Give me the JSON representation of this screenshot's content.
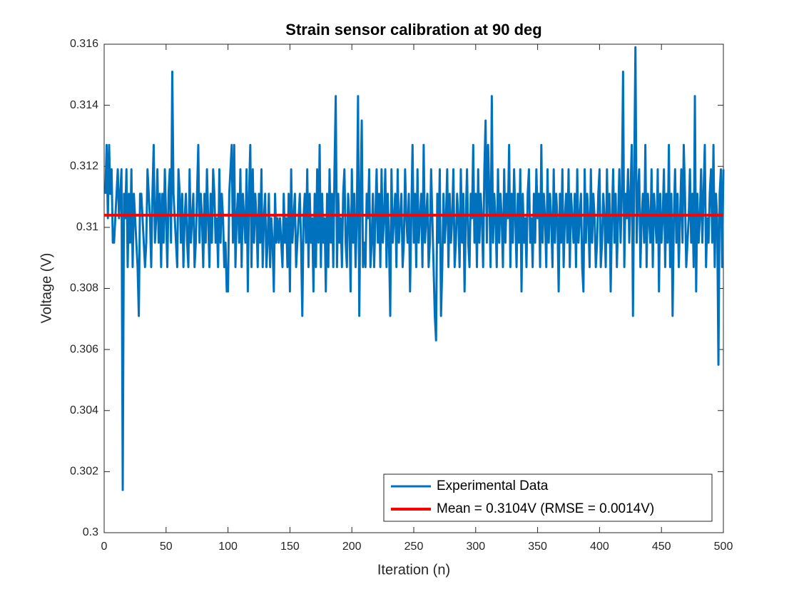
{
  "chart_data": {
    "type": "line",
    "title": "Strain sensor calibration at 90 deg",
    "x_label": "Iteration (n)",
    "y_label": "Voltage (V)",
    "xlim": [
      0,
      500
    ],
    "xticks": [
      0,
      50,
      100,
      150,
      200,
      250,
      300,
      350,
      400,
      450,
      500
    ],
    "ylim": [
      0.3,
      0.316
    ],
    "yticks": [
      0.3,
      0.302,
      0.304,
      0.306,
      0.308,
      0.31,
      0.312,
      0.314,
      0.316
    ],
    "grid": false,
    "legend": "lower right",
    "series": [
      {
        "name": "Experimental Data",
        "color": "#0072bd",
        "x": [
          1,
          2,
          3,
          4,
          5,
          6,
          7,
          8,
          9,
          10,
          11,
          12,
          13,
          14,
          15,
          16,
          17,
          18,
          19,
          20,
          21,
          22,
          23,
          24,
          25,
          26,
          27,
          28,
          29,
          30,
          31,
          32,
          33,
          34,
          35,
          36,
          37,
          38,
          39,
          40,
          41,
          42,
          43,
          44,
          45,
          46,
          47,
          48,
          49,
          50,
          51,
          52,
          53,
          54,
          55,
          56,
          57,
          58,
          59,
          60,
          61,
          62,
          63,
          64,
          65,
          66,
          67,
          68,
          69,
          70,
          71,
          72,
          73,
          74,
          75,
          76,
          77,
          78,
          79,
          80,
          81,
          82,
          83,
          84,
          85,
          86,
          87,
          88,
          89,
          90,
          91,
          92,
          93,
          94,
          95,
          96,
          97,
          98,
          99,
          100,
          101,
          102,
          103,
          104,
          105,
          106,
          107,
          108,
          109,
          110,
          111,
          112,
          113,
          114,
          115,
          116,
          117,
          118,
          119,
          120,
          121,
          122,
          123,
          124,
          125,
          126,
          127,
          128,
          129,
          130,
          131,
          132,
          133,
          134,
          135,
          136,
          137,
          138,
          139,
          140,
          141,
          142,
          143,
          144,
          145,
          146,
          147,
          148,
          149,
          150,
          151,
          152,
          153,
          154,
          155,
          156,
          157,
          158,
          159,
          160,
          161,
          162,
          163,
          164,
          165,
          166,
          167,
          168,
          169,
          170,
          171,
          172,
          173,
          174,
          175,
          176,
          177,
          178,
          179,
          180,
          181,
          182,
          183,
          184,
          185,
          186,
          187,
          188,
          189,
          190,
          191,
          192,
          193,
          194,
          195,
          196,
          197,
          198,
          199,
          200,
          201,
          202,
          203,
          204,
          205,
          206,
          207,
          208,
          209,
          210,
          211,
          212,
          213,
          214,
          215,
          216,
          217,
          218,
          219,
          220,
          221,
          222,
          223,
          224,
          225,
          226,
          227,
          228,
          229,
          230,
          231,
          232,
          233,
          234,
          235,
          236,
          237,
          238,
          239,
          240,
          241,
          242,
          243,
          244,
          245,
          246,
          247,
          248,
          249,
          250,
          251,
          252,
          253,
          254,
          255,
          256,
          257,
          258,
          259,
          260,
          261,
          262,
          263,
          264,
          265,
          266,
          267,
          268,
          269,
          270,
          271,
          272,
          273,
          274,
          275,
          276,
          277,
          278,
          279,
          280,
          281,
          282,
          283,
          284,
          285,
          286,
          287,
          288,
          289,
          290,
          291,
          292,
          293,
          294,
          295,
          296,
          297,
          298,
          299,
          300,
          301,
          302,
          303,
          304,
          305,
          306,
          307,
          308,
          309,
          310,
          311,
          312,
          313,
          314,
          315,
          316,
          317,
          318,
          319,
          320,
          321,
          322,
          323,
          324,
          325,
          326,
          327,
          328,
          329,
          330,
          331,
          332,
          333,
          334,
          335,
          336,
          337,
          338,
          339,
          340,
          341,
          342,
          343,
          344,
          345,
          346,
          347,
          348,
          349,
          350,
          351,
          352,
          353,
          354,
          355,
          356,
          357,
          358,
          359,
          360,
          361,
          362,
          363,
          364,
          365,
          366,
          367,
          368,
          369,
          370,
          371,
          372,
          373,
          374,
          375,
          376,
          377,
          378,
          379,
          380,
          381,
          382,
          383,
          384,
          385,
          386,
          387,
          388,
          389,
          390,
          391,
          392,
          393,
          394,
          395,
          396,
          397,
          398,
          399,
          400,
          401,
          402,
          403,
          404,
          405,
          406,
          407,
          408,
          409,
          410,
          411,
          412,
          413,
          414,
          415,
          416,
          417,
          418,
          419,
          420,
          421,
          422,
          423,
          424,
          425,
          426,
          427,
          428,
          429,
          430,
          431,
          432,
          433,
          434,
          435,
          436,
          437,
          438,
          439,
          440,
          441,
          442,
          443,
          444,
          445,
          446,
          447,
          448,
          449,
          450,
          451,
          452,
          453,
          454,
          455,
          456,
          457,
          458,
          459,
          460,
          461,
          462,
          463,
          464,
          465,
          466,
          467,
          468,
          469,
          470,
          471,
          472,
          473,
          474,
          475,
          476,
          477,
          478,
          479,
          480,
          481,
          482,
          483,
          484,
          485,
          486,
          487,
          488,
          489,
          490,
          491,
          492,
          493,
          494,
          495,
          496,
          497,
          498,
          499,
          500
        ],
        "values": [
          0.3111,
          0.3127,
          0.3103,
          0.3127,
          0.3111,
          0.3119,
          0.3095,
          0.3095,
          0.3103,
          0.3111,
          0.3119,
          0.3103,
          0.3111,
          0.3119,
          0.3014,
          0.3111,
          0.3103,
          0.3119,
          0.3087,
          0.3111,
          0.3095,
          0.3119,
          0.3087,
          0.3111,
          0.3103,
          0.3095,
          0.3087,
          0.3071,
          0.3111,
          0.3111,
          0.3103,
          0.3095,
          0.3087,
          0.3095,
          0.3119,
          0.3111,
          0.3103,
          0.3087,
          0.3111,
          0.3127,
          0.3095,
          0.3103,
          0.3119,
          0.3095,
          0.3111,
          0.3087,
          0.3111,
          0.3095,
          0.3119,
          0.3103,
          0.3087,
          0.3111,
          0.3119,
          0.3095,
          0.3151,
          0.3111,
          0.3103,
          0.3095,
          0.3087,
          0.3119,
          0.3111,
          0.3095,
          0.3111,
          0.3087,
          0.3103,
          0.3111,
          0.3095,
          0.3087,
          0.3119,
          0.3095,
          0.3103,
          0.3111,
          0.3087,
          0.3095,
          0.3111,
          0.3127,
          0.3095,
          0.3111,
          0.3103,
          0.3087,
          0.3111,
          0.3095,
          0.3119,
          0.3103,
          0.3087,
          0.3111,
          0.3095,
          0.3119,
          0.3111,
          0.3095,
          0.3103,
          0.3087,
          0.3119,
          0.3095,
          0.3111,
          0.3103,
          0.3087,
          0.3095,
          0.3079,
          0.3079,
          0.3111,
          0.3119,
          0.3127,
          0.3095,
          0.3127,
          0.3087,
          0.3103,
          0.3111,
          0.3095,
          0.3119,
          0.3087,
          0.3111,
          0.3103,
          0.3095,
          0.3119,
          0.3079,
          0.3111,
          0.3127,
          0.3087,
          0.3119,
          0.3095,
          0.3111,
          0.3103,
          0.3087,
          0.3111,
          0.3095,
          0.3119,
          0.3087,
          0.3103,
          0.3111,
          0.3087,
          0.3095,
          0.3111,
          0.3087,
          0.3103,
          0.3095,
          0.3079,
          0.3111,
          0.3095,
          0.3103,
          0.3095,
          0.3103,
          0.3095,
          0.3087,
          0.3111,
          0.3095,
          0.3103,
          0.3087,
          0.3111,
          0.3079,
          0.3119,
          0.3095,
          0.3103,
          0.3111,
          0.3087,
          0.3095,
          0.3103,
          0.3111,
          0.3095,
          0.3071,
          0.3103,
          0.3111,
          0.3095,
          0.3119,
          0.3087,
          0.3111,
          0.3095,
          0.3103,
          0.3079,
          0.3111,
          0.3087,
          0.3119,
          0.3095,
          0.3127,
          0.3087,
          0.3111,
          0.3095,
          0.3103,
          0.3079,
          0.3111,
          0.3087,
          0.3119,
          0.3095,
          0.3111,
          0.3087,
          0.3119,
          0.3143,
          0.3087,
          0.3111,
          0.3095,
          0.3103,
          0.3087,
          0.3111,
          0.3119,
          0.3095,
          0.3087,
          0.3111,
          0.3103,
          0.3079,
          0.3119,
          0.3095,
          0.3111,
          0.3087,
          0.3103,
          0.3143,
          0.3071,
          0.3111,
          0.3135,
          0.3087,
          0.3095,
          0.3087,
          0.3111,
          0.3103,
          0.3119,
          0.3087,
          0.3095,
          0.3111,
          0.3087,
          0.3103,
          0.3119,
          0.3095,
          0.3111,
          0.3087,
          0.3119,
          0.3095,
          0.3103,
          0.3119,
          0.3087,
          0.3111,
          0.3095,
          0.3071,
          0.3119,
          0.3095,
          0.3103,
          0.3111,
          0.3087,
          0.3119,
          0.3095,
          0.3103,
          0.3111,
          0.3087,
          0.3095,
          0.3119,
          0.3103,
          0.3095,
          0.3111,
          0.3079,
          0.3103,
          0.3127,
          0.3095,
          0.3111,
          0.3087,
          0.3119,
          0.3095,
          0.3103,
          0.3111,
          0.3087,
          0.3127,
          0.3095,
          0.3103,
          0.3111,
          0.3087,
          0.3095,
          0.3119,
          0.3103,
          0.3087,
          0.3071,
          0.3063,
          0.3111,
          0.3095,
          0.3119,
          0.3071,
          0.3087,
          0.3111,
          0.3095,
          0.3103,
          0.3119,
          0.3087,
          0.3111,
          0.3095,
          0.3103,
          0.3119,
          0.3087,
          0.3095,
          0.3111,
          0.3103,
          0.3087,
          0.3119,
          0.3095,
          0.3111,
          0.3079,
          0.3103,
          0.3119,
          0.3095,
          0.3087,
          0.3111,
          0.3103,
          0.3127,
          0.3095,
          0.3111,
          0.3087,
          0.3119,
          0.3095,
          0.3111,
          0.3103,
          0.3087,
          0.3119,
          0.3135,
          0.3095,
          0.3127,
          0.3111,
          0.3087,
          0.3143,
          0.3095,
          0.3111,
          0.3103,
          0.3087,
          0.3119,
          0.3095,
          0.3111,
          0.3103,
          0.3087,
          0.3119,
          0.3095,
          0.3111,
          0.3103,
          0.3127,
          0.3087,
          0.3111,
          0.3095,
          0.3119,
          0.3103,
          0.3087,
          0.3111,
          0.3095,
          0.3119,
          0.3079,
          0.3111,
          0.3095,
          0.3103,
          0.3087,
          0.3111,
          0.3119,
          0.3095,
          0.3103,
          0.3087,
          0.3111,
          0.3095,
          0.3119,
          0.3103,
          0.3111,
          0.3087,
          0.3127,
          0.3095,
          0.3111,
          0.3103,
          0.3087,
          0.3119,
          0.3095,
          0.3111,
          0.3103,
          0.3087,
          0.3119,
          0.3095,
          0.3111,
          0.3103,
          0.3079,
          0.3111,
          0.3095,
          0.3119,
          0.3087,
          0.3103,
          0.3111,
          0.3095,
          0.3119,
          0.3087,
          0.3111,
          0.3103,
          0.3095,
          0.3111,
          0.3087,
          0.3119,
          0.3095,
          0.3103,
          0.3111,
          0.3087,
          0.3079,
          0.3119,
          0.3095,
          0.3111,
          0.3103,
          0.3087,
          0.3119,
          0.3095,
          0.3111,
          0.3103,
          0.3087,
          0.3095,
          0.3111,
          0.3119,
          0.3087,
          0.3095,
          0.3111,
          0.3103,
          0.3087,
          0.3119,
          0.3095,
          0.3111,
          0.3079,
          0.3103,
          0.3119,
          0.3095,
          0.3111,
          0.3087,
          0.3103,
          0.3119,
          0.3095,
          0.3111,
          0.3151,
          0.3087,
          0.3111,
          0.3103,
          0.3119,
          0.3095,
          0.3111,
          0.3127,
          0.3071,
          0.3119,
          0.3159,
          0.3095,
          0.3111,
          0.3119,
          0.3087,
          0.3103,
          0.3111,
          0.3095,
          0.3127,
          0.3087,
          0.3111,
          0.3103,
          0.3095,
          0.3119,
          0.3087,
          0.3111,
          0.3103,
          0.3095,
          0.3119,
          0.3079,
          0.3111,
          0.3095,
          0.3103,
          0.3119,
          0.3087,
          0.3111,
          0.3095,
          0.3127,
          0.3087,
          0.3111,
          0.3071,
          0.3103,
          0.3119,
          0.3095,
          0.3111,
          0.3087,
          0.3103,
          0.3119,
          0.3095,
          0.3127,
          0.3111,
          0.3087,
          0.3095,
          0.3103,
          0.3119,
          0.3095,
          0.3111,
          0.3087,
          0.3143,
          0.3079,
          0.3111,
          0.3095,
          0.3103,
          0.3119,
          0.3095,
          0.3111,
          0.3127,
          0.3087,
          0.3103,
          0.3095,
          0.3111,
          0.3119,
          0.3095,
          0.3127,
          0.3087,
          0.3111,
          0.3103,
          0.3055,
          0.3111,
          0.3119,
          0.3087,
          0.3119
        ]
      },
      {
        "name": "Mean = 0.3104V (RMSE = 0.0014V)",
        "color": "#ff0000",
        "x": [
          0,
          500
        ],
        "values": [
          0.3104,
          0.3104
        ]
      }
    ]
  }
}
